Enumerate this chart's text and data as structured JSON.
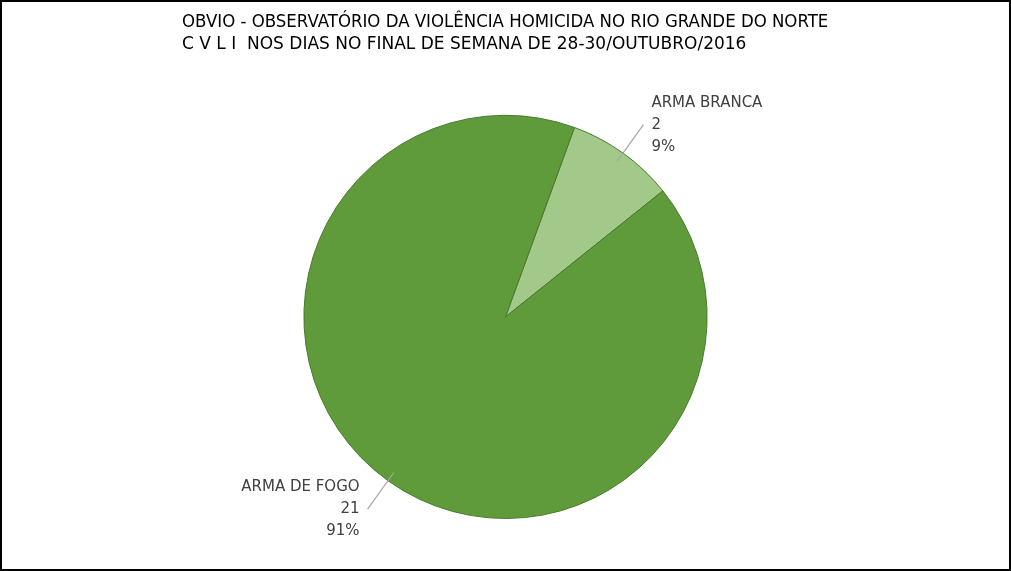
{
  "chart_data": {
    "type": "pie",
    "title": "OBVIO - OBSERVATÓRIO DA VIOLÊNCIA HOMICIDA NO RIO GRANDE DO NORTE",
    "subtitle": "C V L I  NOS DIAS NO FINAL DE SEMANA DE 28-30/OUTUBRO/2016",
    "categories": [
      "ARMA BRANCA",
      "ARMA DE FOGO"
    ],
    "values": [
      2,
      21
    ],
    "colors": [
      "#a3c98a",
      "#5f9b3b"
    ],
    "value_labels": [
      "2\n9%",
      "21\n91%"
    ],
    "legend": false
  }
}
